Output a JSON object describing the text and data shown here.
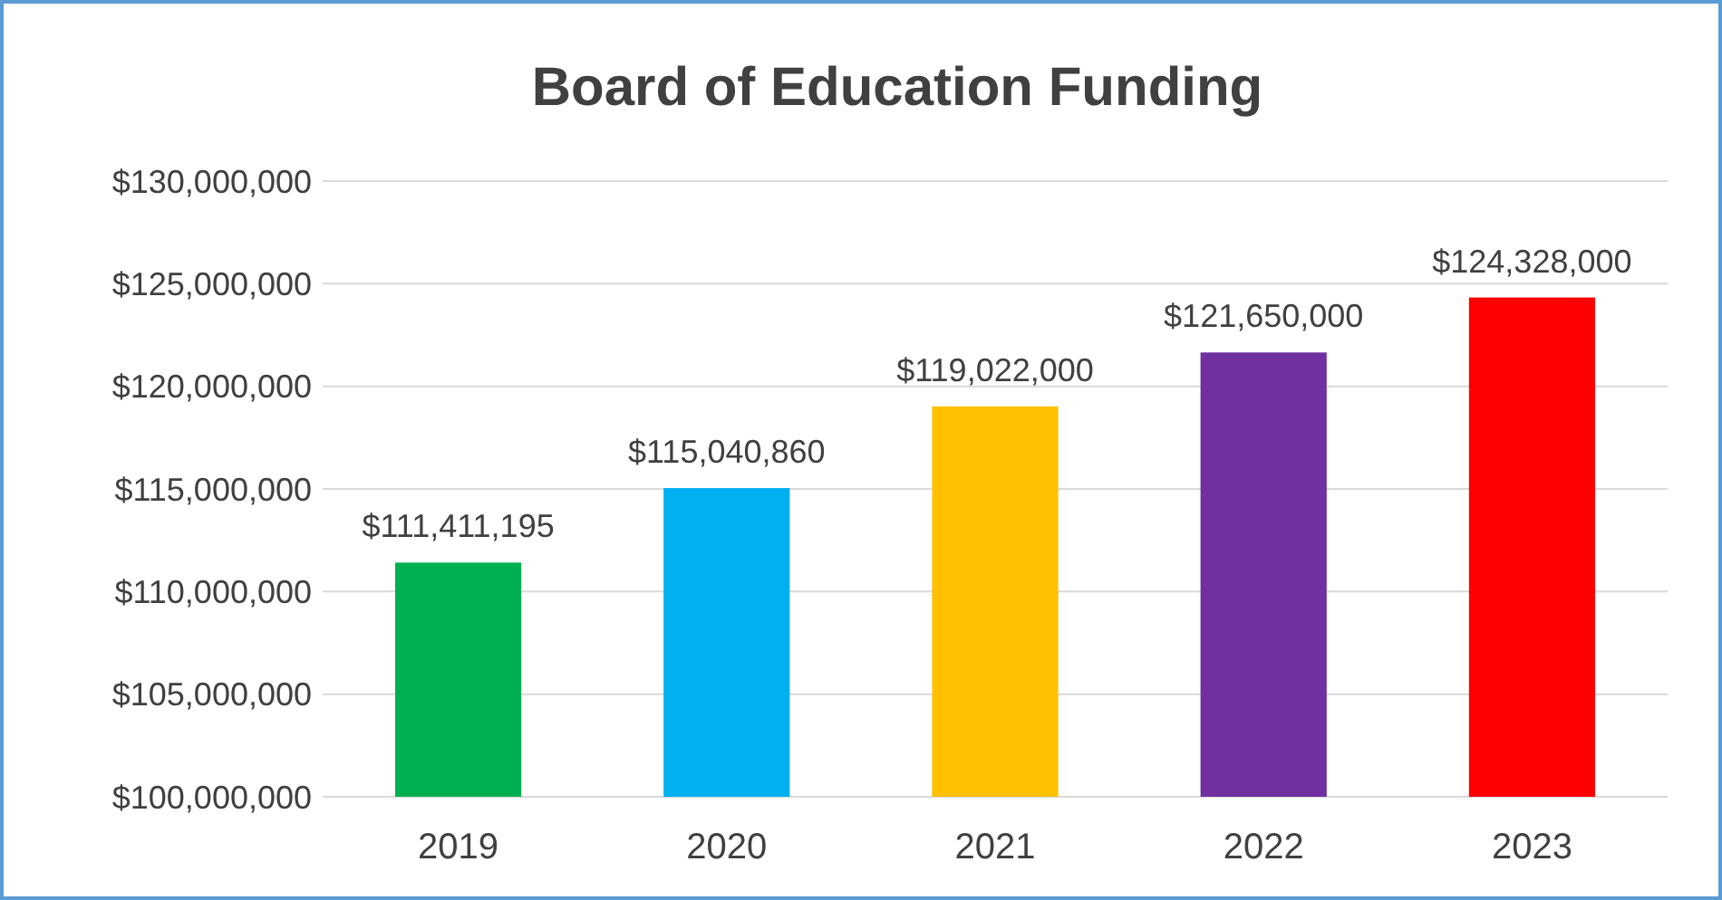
{
  "chart_data": {
    "type": "bar",
    "title": "Board of Education Funding",
    "categories": [
      "2019",
      "2020",
      "2021",
      "2022",
      "2023"
    ],
    "values": [
      111411195,
      115040860,
      119022000,
      121650000,
      124328000
    ],
    "colors": [
      "#00b050",
      "#00b0f0",
      "#ffc000",
      "#7030a0",
      "#ff0000"
    ],
    "ylim": [
      100000000,
      130000000
    ],
    "yticks": [
      {
        "value": 100000000,
        "label": "$100,000,000"
      },
      {
        "value": 105000000,
        "label": "$105,000,000"
      },
      {
        "value": 110000000,
        "label": "$110,000,000"
      },
      {
        "value": 115000000,
        "label": "$115,000,000"
      },
      {
        "value": 120000000,
        "label": "$120,000,000"
      },
      {
        "value": 125000000,
        "label": "$125,000,000"
      },
      {
        "value": 130000000,
        "label": "$130,000,000"
      }
    ],
    "value_labels": [
      "$111,411,195",
      "$115,040,860",
      "$119,022,000",
      "$121,650,000",
      "$124,328,000"
    ],
    "grid": "y"
  }
}
